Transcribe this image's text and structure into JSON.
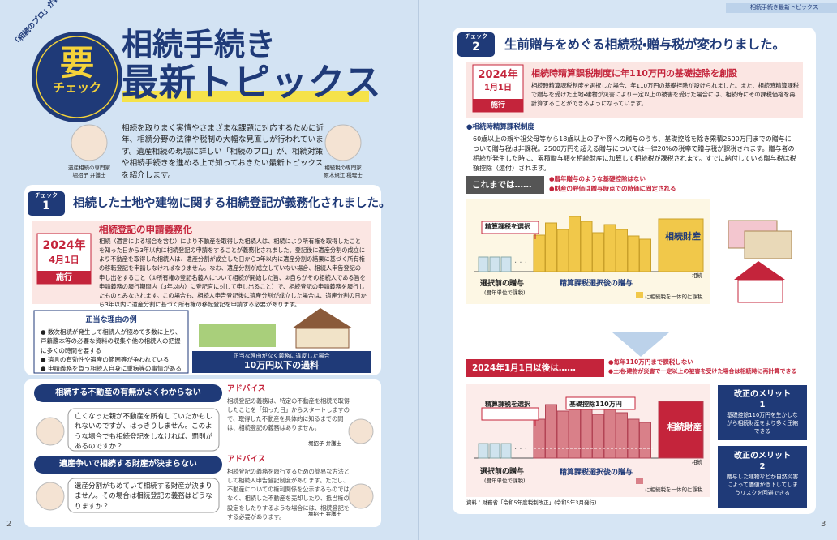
{
  "header": {
    "tag": "「相続のプロ」が教える!",
    "badge_main": "要",
    "badge_sub": "チェック",
    "title_line1": "相続手続き",
    "title_line2": "最新トピックス",
    "running_head": "相続手続き最新トピックス"
  },
  "intro": {
    "text": "相続を取りまく実情やさまざまな課題に対応するために近年、相続分野の法律や税制の大幅な見直しが行われています。遺産相続の現場に詳しい「相続のプロ」が、相続対策や相続手続きを進める上で知っておきたい最新トピックスを紹介します。",
    "expert_left_role": "遺産相続の専門家",
    "expert_left_name": "堀招子 弁護士",
    "expert_right_role": "相続税の専門家",
    "expert_right_name": "原木規江 税理士"
  },
  "check1": {
    "label": "チェック",
    "num": "1",
    "title": "相続した土地や建物に関する相続登記が義務化されました。",
    "date_year": "2024年",
    "date_md": "4月1日",
    "status": "施行",
    "heading": "相続登記の申請義務化",
    "body": "相続（遺言による場合を含む）により不動産を取得した相続人は、相続により所有権を取得したことを知った日から3年以内に相続登記の申請をすることが義務化されました。登記後に遺産分割の成立により不動産を取得した相続人は、遺産分割が成立した日から3年以内に遺産分割の結果に基づく所有権の移転登記を申請しなければなりません。なお、遺産分割が成立していない場合、相続人申告登記の申し出をすること（①所有権の登記名義人について相続が開始した旨、②自らがその相続人である旨を申請義務の履行期間内（3年以内）に登記官に対して申し出ること）で、相続登記の申請義務を履行したものとみなされます。この場合も、相続人申告登記後に遺産分割が成立した場合は、遺産分割の日から3年以内に遺産分割に基づく所有権の移転登記を申請する必要があります。",
    "reasons_title": "正当な理由の例",
    "reasons": [
      "数次相続が発生して相続人が極めて多数に上り、戸籍謄本等の必要な資料の収集や他の相続人の把握に多くの時間を要する",
      "遺言の有効性や遺産の範囲等が争われている",
      "申請義務を負う相続人自身に重病等の事情がある"
    ],
    "penalty_line1": "正当な理由がなく義務に違反した場合",
    "penalty_line2": "10万円以下の過料"
  },
  "qa": [
    {
      "title": "相続する不動産の有無がよくわからない",
      "question": "亡くなった親が不動産を所有していたかもしれないのですが、はっきりしません。このような場合でも相続登記をしなければ、罰則があるのですか？",
      "advice_label": "アドバイス",
      "advice": "相続登記の義務は、特定の不動産を相続で取得したことを「知った日」からスタートしますので、取得した不動産を具体的に知るまでの間は、相続登記の義務はありません。",
      "advisor": "堀招子 弁護士"
    },
    {
      "title": "遺産争いで相続する財産が決まらない",
      "question": "遺産分割がもめていて相続する財産が決まりません。その場合は相続登記の義務はどうなりますか？",
      "advice_label": "アドバイス",
      "advice": "相続登記の義務を履行するための簡易な方法として相続人申告登記制度があります。ただし、不動産についての権利関係を公示するものではなく、相続した不動産を売却したり、抵当権の設定をしたりするような場合には、相続登記をする必要があります。",
      "advisor": "堀招子 弁護士"
    }
  ],
  "check2": {
    "label": "チェック",
    "num": "2",
    "title": "生前贈与をめぐる相続税・贈与税が変わりました。",
    "date_year": "2024年",
    "date_md": "1月1日",
    "status": "施行",
    "heading": "相続時精算課税制度に年110万円の基礎控除を創設",
    "body": "相続時精算課税制度を選択した場合、年110万円の基礎控除が設けられました。また、相続時精算課税で贈与を受けた土地・建物が災害により一定以上の被害を受けた場合には、相続時にその課税価格を再計算することができるようになっています。",
    "section_title": "●相続時精算課税制度",
    "section_body": "60歳以上の親や祖父母等から18歳以上の子や孫への贈与のうち、基礎控除を除き累積2500万円までの贈与について贈与税は非課税。2500万円を超える贈与については一律20%の税率で贈与税が課税されます。贈与者の相続が発生した時に、累積贈与額を相続財産に加算して相続税が課税されます。すでに納付している贈与税は税額控除（還付）されます。"
  },
  "before": {
    "label": "これまでは……",
    "notes": [
      "●暦年贈与のような基礎控除はない",
      "●財産の評価は贈与時点での時価に固定される"
    ],
    "callout": "精算課税を選択",
    "axis_left": "選択前の贈与",
    "axis_left_sub": "(暦年単位で課税)",
    "axis_mid": "精算課税選択後の贈与",
    "axis_end": "相続",
    "estate": "相続財産",
    "legend": "に相続税を一体的に課税"
  },
  "after": {
    "label": "2024年1月1日以後は……",
    "notes": [
      "●毎年110万円まで課税しない",
      "●土地・建物が災害で一定以上の被害を受けた場合は相続時に再計算できる"
    ],
    "callout": "精算課税を選択",
    "callout2": "基礎控除110万円",
    "axis_left": "選択前の贈与",
    "axis_left_sub": "(暦年単位で課税)",
    "axis_mid": "精算課税選択後の贈与",
    "axis_end": "相続",
    "estate": "相続財産",
    "legend": "に相続税を一体的に課税"
  },
  "merits": [
    {
      "title": "改正のメリット",
      "num": "1",
      "text": "基礎控除110万円を生かしながら相続財産をより多く圧縮できる"
    },
    {
      "title": "改正のメリット",
      "num": "2",
      "text": "贈与した建物などが自然災害によって価値が低下してしまうリスクを回避できる"
    }
  ],
  "source": "資料：財務省「令和5年度税制改正」(令和5年3月発行)",
  "page_left": "2",
  "page_right": "3"
}
